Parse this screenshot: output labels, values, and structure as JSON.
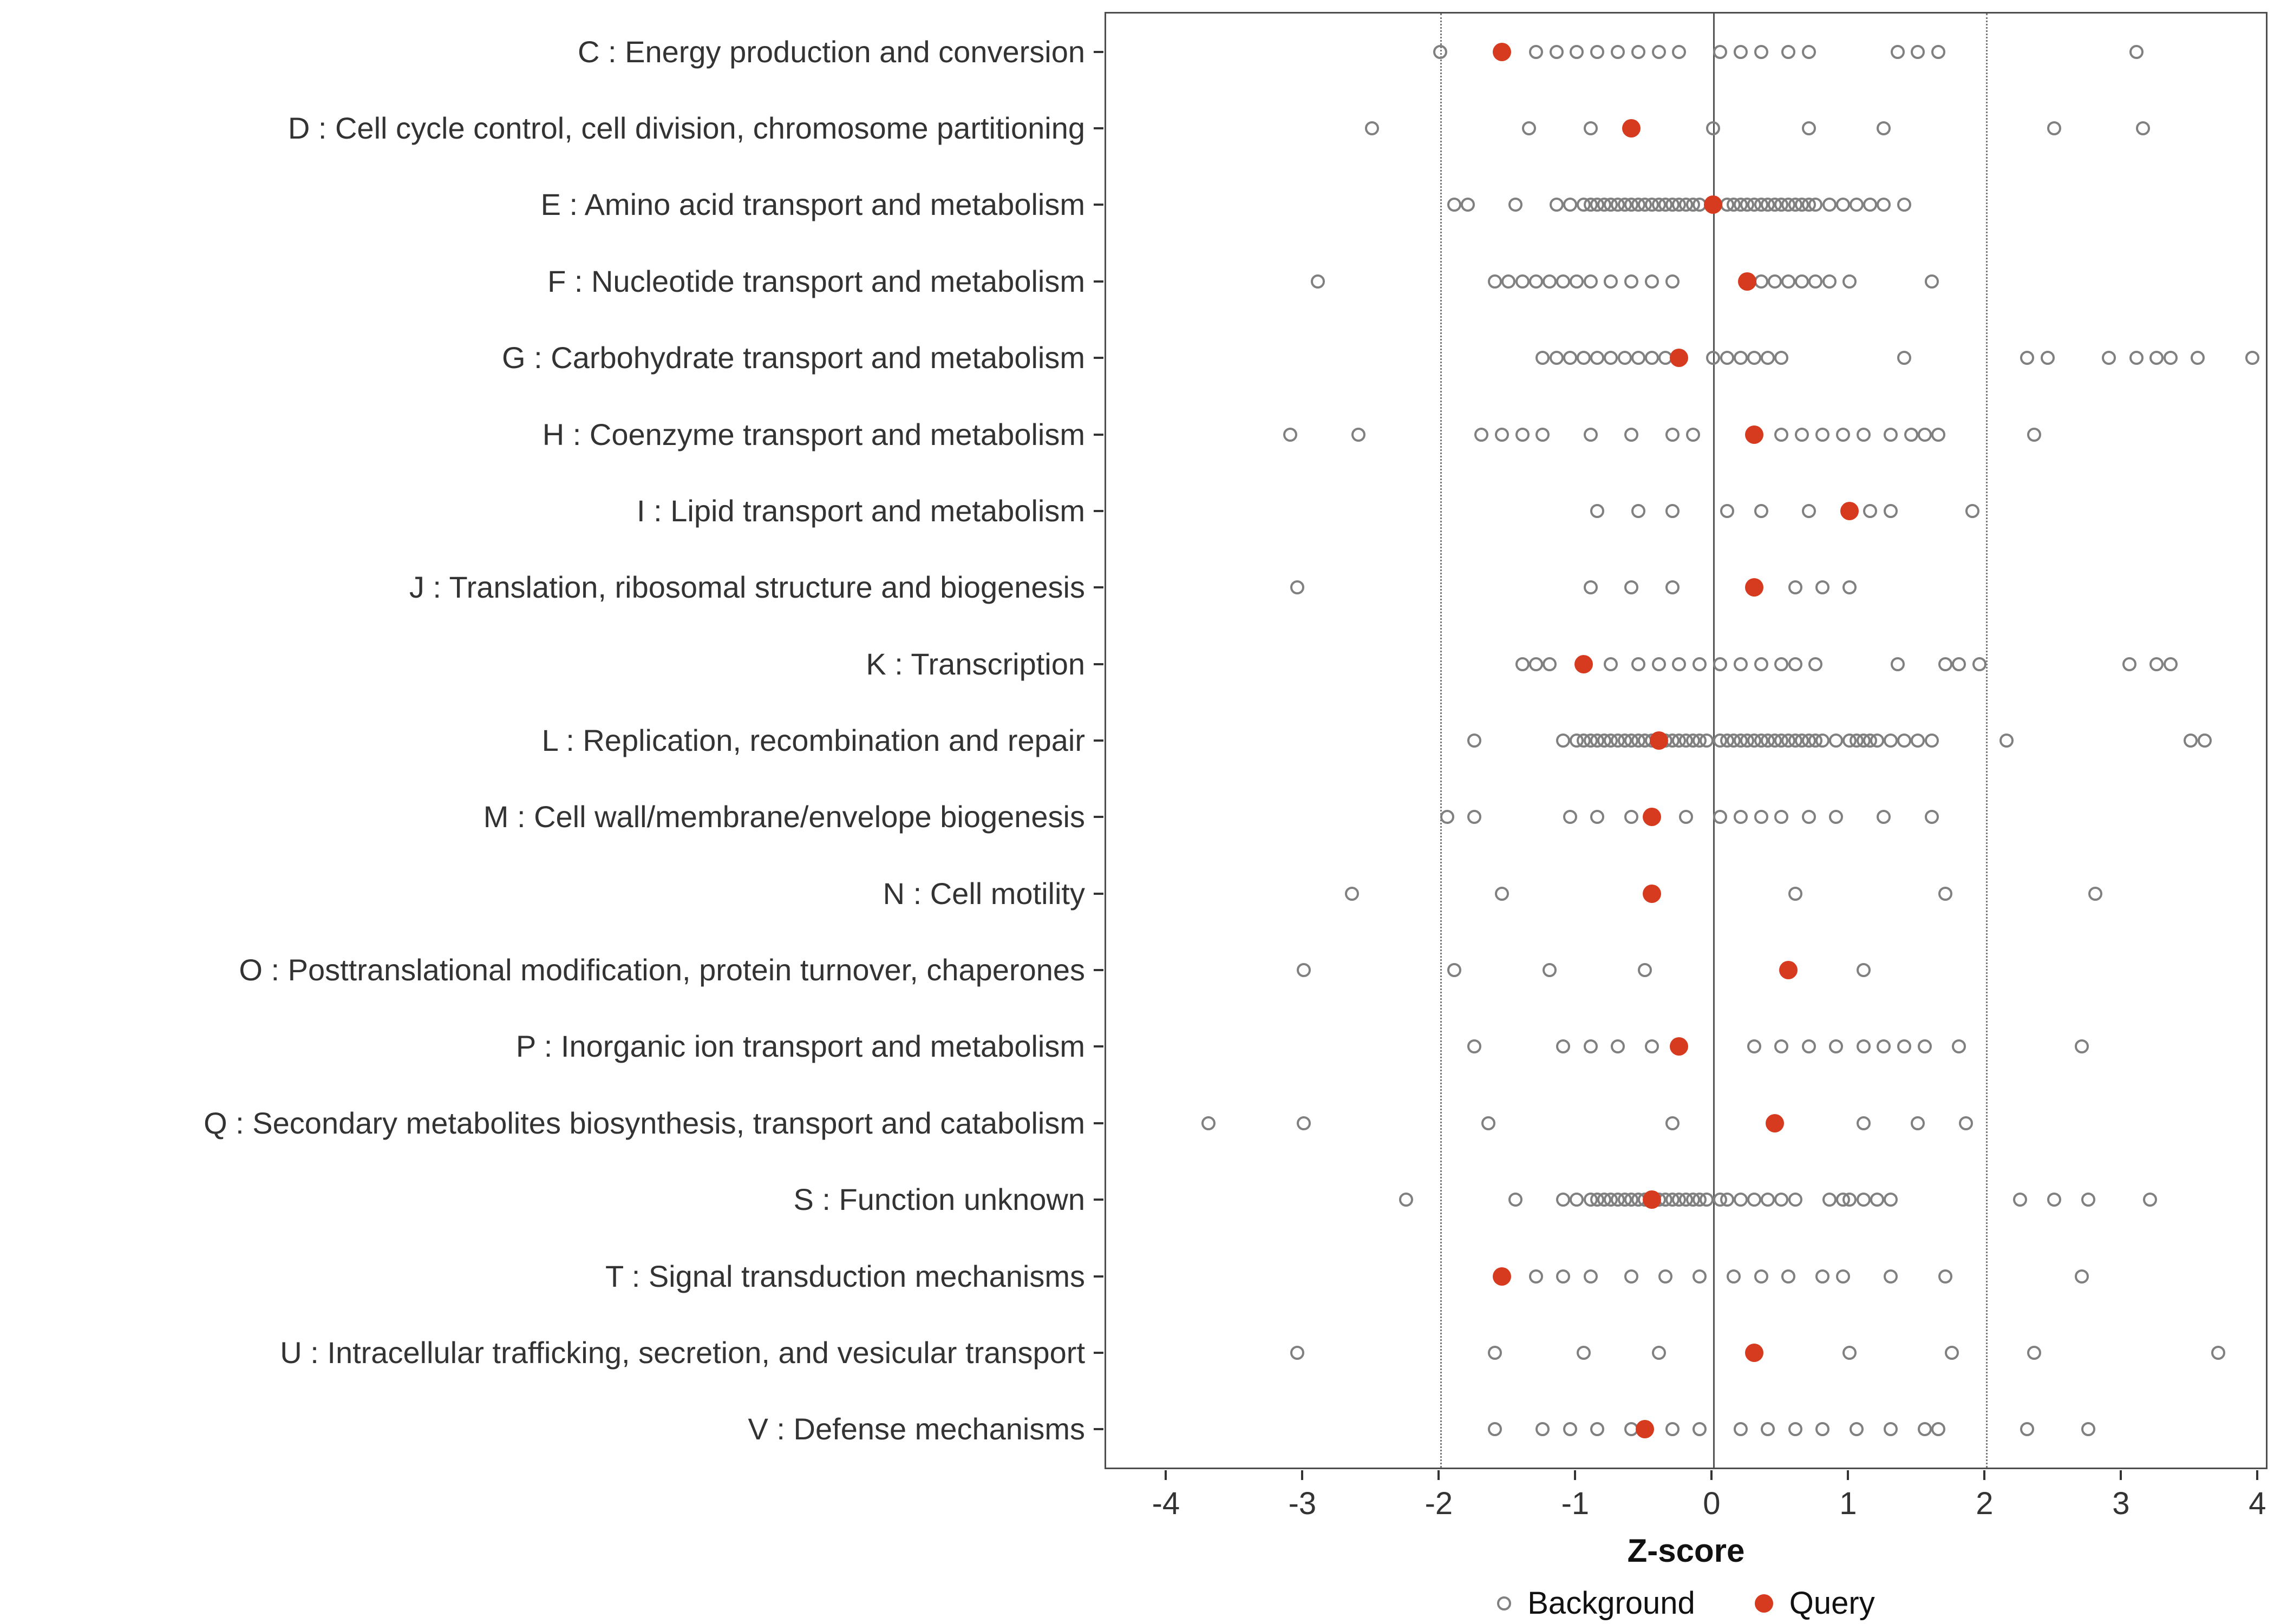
{
  "legend": {
    "background_label": "Background",
    "query_label": "Query"
  },
  "colors": {
    "query": "#D63B1F",
    "background_stroke": "#808080",
    "panel_border": "#4D4D4D",
    "zero_line": "#555555",
    "threshold_line": "#777777",
    "text": "#333333"
  },
  "chart_data": {
    "type": "scatter",
    "title": "",
    "xlabel": "Z-score",
    "ylabel": "",
    "xlim": [
      -4.45,
      4.05
    ],
    "x_ticks": [
      -4,
      -3,
      -2,
      -1,
      0,
      1,
      2,
      3,
      4
    ],
    "grid": false,
    "legend_position": "bottom",
    "legend_entries": [
      "Background",
      "Query"
    ],
    "reference_lines": {
      "solid": [
        0
      ],
      "dotted": [
        -2,
        2
      ]
    },
    "rows": [
      {
        "label": "C : Energy production and conversion",
        "query": -1.55,
        "background": [
          -2.0,
          -1.3,
          -1.15,
          -1.0,
          -0.85,
          -0.7,
          -0.55,
          -0.4,
          -0.25,
          0.05,
          0.2,
          0.35,
          0.55,
          0.7,
          1.35,
          1.5,
          1.65,
          3.1
        ]
      },
      {
        "label": "D : Cell cycle control, cell division, chromosome partitioning",
        "query": -0.6,
        "background": [
          -2.5,
          -1.35,
          -0.9,
          0.0,
          0.7,
          1.25,
          2.5,
          3.15
        ]
      },
      {
        "label": "E : Amino acid transport and metabolism",
        "query": 0.0,
        "background": [
          -1.9,
          -1.8,
          -1.45,
          -1.15,
          -1.05,
          -0.95,
          -0.9,
          -0.85,
          -0.8,
          -0.75,
          -0.7,
          -0.65,
          -0.6,
          -0.55,
          -0.5,
          -0.45,
          -0.4,
          -0.35,
          -0.3,
          -0.25,
          -0.2,
          -0.15,
          -0.1,
          0.1,
          0.15,
          0.2,
          0.25,
          0.3,
          0.35,
          0.4,
          0.45,
          0.5,
          0.55,
          0.6,
          0.65,
          0.7,
          0.75,
          0.85,
          0.95,
          1.05,
          1.15,
          1.25,
          1.4
        ]
      },
      {
        "label": "F : Nucleotide transport and metabolism",
        "query": 0.25,
        "background": [
          -2.9,
          -1.6,
          -1.5,
          -1.4,
          -1.3,
          -1.2,
          -1.1,
          -1.0,
          -0.9,
          -0.75,
          -0.6,
          -0.45,
          -0.3,
          0.35,
          0.45,
          0.55,
          0.65,
          0.75,
          0.85,
          1.0,
          1.6
        ]
      },
      {
        "label": "G : Carbohydrate transport and metabolism",
        "query": -0.25,
        "background": [
          -1.25,
          -1.15,
          -1.05,
          -0.95,
          -0.85,
          -0.75,
          -0.65,
          -0.55,
          -0.45,
          -0.35,
          0.0,
          0.1,
          0.2,
          0.3,
          0.4,
          0.5,
          1.4,
          2.3,
          2.45,
          2.9,
          3.1,
          3.25,
          3.35,
          3.55,
          3.95
        ]
      },
      {
        "label": "H : Coenzyme transport and metabolism",
        "query": 0.3,
        "background": [
          -3.1,
          -2.6,
          -1.7,
          -1.55,
          -1.4,
          -1.25,
          -0.9,
          -0.6,
          -0.3,
          -0.15,
          0.5,
          0.65,
          0.8,
          0.95,
          1.1,
          1.3,
          1.45,
          1.55,
          1.65,
          2.35
        ]
      },
      {
        "label": "I : Lipid transport and metabolism",
        "query": 1.0,
        "background": [
          -0.85,
          -0.55,
          -0.3,
          0.1,
          0.35,
          0.7,
          1.15,
          1.3,
          1.9
        ]
      },
      {
        "label": "J : Translation, ribosomal structure and biogenesis",
        "query": 0.3,
        "background": [
          -3.05,
          -0.9,
          -0.6,
          -0.3,
          0.6,
          0.8,
          1.0
        ]
      },
      {
        "label": "K : Transcription",
        "query": -0.95,
        "background": [
          -1.4,
          -1.3,
          -1.2,
          -0.75,
          -0.55,
          -0.4,
          -0.25,
          -0.1,
          0.05,
          0.2,
          0.35,
          0.5,
          0.6,
          0.75,
          1.35,
          1.7,
          1.8,
          1.95,
          3.05,
          3.25,
          3.35
        ]
      },
      {
        "label": "L : Replication, recombination and repair",
        "query": -0.4,
        "background": [
          -1.75,
          -1.1,
          -1.0,
          -0.95,
          -0.9,
          -0.85,
          -0.8,
          -0.75,
          -0.7,
          -0.65,
          -0.6,
          -0.55,
          -0.5,
          -0.45,
          -0.4,
          -0.35,
          -0.3,
          -0.25,
          -0.2,
          -0.15,
          -0.1,
          -0.05,
          0.05,
          0.1,
          0.15,
          0.2,
          0.25,
          0.3,
          0.35,
          0.4,
          0.45,
          0.5,
          0.55,
          0.6,
          0.65,
          0.7,
          0.75,
          0.8,
          0.9,
          1.0,
          1.05,
          1.1,
          1.15,
          1.2,
          1.3,
          1.4,
          1.5,
          1.6,
          2.15,
          3.5,
          3.6
        ]
      },
      {
        "label": "M : Cell wall/membrane/envelope biogenesis",
        "query": -0.45,
        "background": [
          -1.95,
          -1.75,
          -1.05,
          -0.85,
          -0.6,
          -0.2,
          0.05,
          0.2,
          0.35,
          0.5,
          0.7,
          0.9,
          1.25,
          1.6
        ]
      },
      {
        "label": "N : Cell motility",
        "query": -0.45,
        "background": [
          -2.65,
          -1.55,
          0.6,
          1.7,
          2.8
        ]
      },
      {
        "label": "O : Posttranslational modification, protein turnover, chaperones",
        "query": 0.55,
        "background": [
          -3.0,
          -1.9,
          -1.2,
          -0.5,
          1.1
        ]
      },
      {
        "label": "P : Inorganic ion transport and metabolism",
        "query": -0.25,
        "background": [
          -1.75,
          -1.1,
          -0.9,
          -0.7,
          -0.45,
          0.3,
          0.5,
          0.7,
          0.9,
          1.1,
          1.25,
          1.4,
          1.55,
          1.8,
          2.7
        ]
      },
      {
        "label": "Q : Secondary metabolites biosynthesis, transport and catabolism",
        "query": 0.45,
        "background": [
          -3.7,
          -3.0,
          -1.65,
          -0.3,
          1.1,
          1.5,
          1.85
        ]
      },
      {
        "label": "S : Function unknown",
        "query": -0.45,
        "background": [
          -2.25,
          -1.45,
          -1.1,
          -1.0,
          -0.9,
          -0.85,
          -0.8,
          -0.75,
          -0.7,
          -0.65,
          -0.6,
          -0.55,
          -0.5,
          -0.45,
          -0.4,
          -0.35,
          -0.3,
          -0.25,
          -0.2,
          -0.15,
          -0.1,
          -0.05,
          0.05,
          0.1,
          0.2,
          0.3,
          0.4,
          0.5,
          0.6,
          0.85,
          0.95,
          1.0,
          1.1,
          1.2,
          1.3,
          2.25,
          2.5,
          2.75,
          3.2
        ]
      },
      {
        "label": "T : Signal transduction mechanisms",
        "query": -1.55,
        "background": [
          -1.3,
          -1.1,
          -0.9,
          -0.6,
          -0.35,
          -0.1,
          0.15,
          0.35,
          0.55,
          0.8,
          0.95,
          1.3,
          1.7,
          2.7
        ]
      },
      {
        "label": "U : Intracellular trafficking, secretion, and vesicular transport",
        "query": 0.3,
        "background": [
          -3.05,
          -1.6,
          -0.95,
          -0.4,
          1.0,
          1.75,
          2.35,
          3.7
        ]
      },
      {
        "label": "V : Defense mechanisms",
        "query": -0.5,
        "background": [
          -1.6,
          -1.25,
          -1.05,
          -0.85,
          -0.6,
          -0.3,
          -0.1,
          0.2,
          0.4,
          0.6,
          0.8,
          1.05,
          1.3,
          1.55,
          1.65,
          2.3,
          2.75
        ]
      }
    ]
  }
}
